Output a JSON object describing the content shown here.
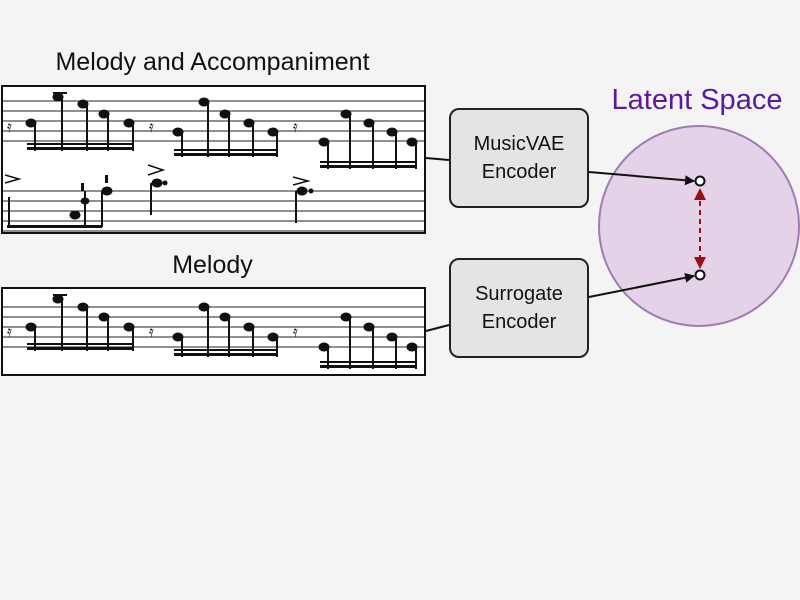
{
  "labels": {
    "melody_and_accompaniment": "Melody and Accompaniment",
    "melody": "Melody",
    "latent_space": "Latent Space"
  },
  "encoders": {
    "musicvae": [
      "MusicVAE",
      "Encoder"
    ],
    "surrogate": [
      "Surrogate",
      "Encoder"
    ]
  },
  "colors": {
    "latent_fill": "#e4d3e8",
    "latent_stroke": "#a07ab0",
    "latent_title": "#5b1a9e",
    "distance_arrow": "#9b1010"
  },
  "icons": {
    "score_images": "sheet-music-notation"
  }
}
